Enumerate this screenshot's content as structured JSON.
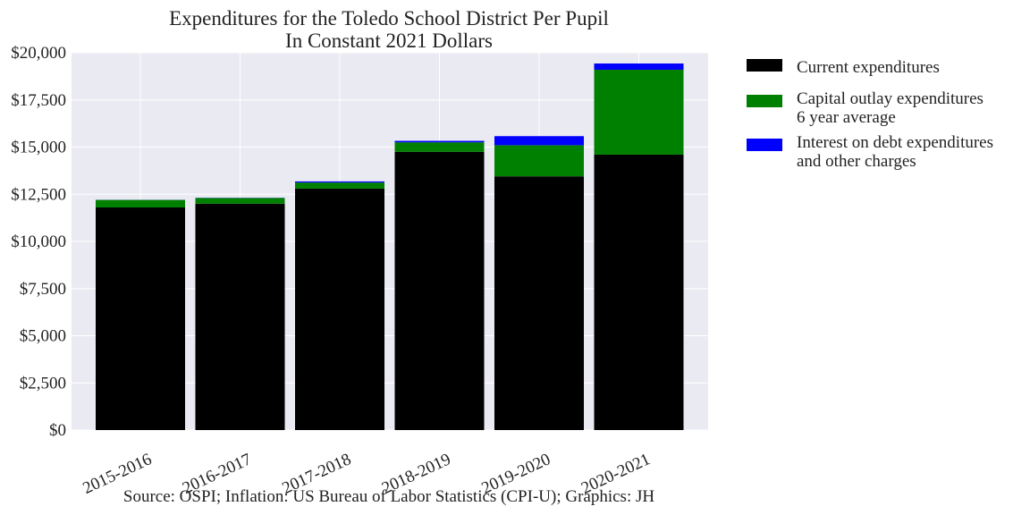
{
  "chart_data": {
    "type": "bar",
    "stacked": true,
    "title": "Expenditures for the Toledo School District Per Pupil",
    "subtitle": "In Constant 2021 Dollars",
    "xlabel": "",
    "ylabel": "",
    "categories": [
      "2015-2016",
      "2016-2017",
      "2017-2018",
      "2018-2019",
      "2019-2020",
      "2020-2021"
    ],
    "series": [
      {
        "name": "Current expenditures",
        "color": "#000000",
        "values": [
          11800,
          12000,
          12800,
          14750,
          13450,
          14600
        ]
      },
      {
        "name": "Capital outlay expenditures\n6 year average",
        "color": "#008000",
        "values": [
          400,
          300,
          320,
          500,
          1650,
          4500
        ]
      },
      {
        "name": "Interest on debt expenditures\nand other charges",
        "color": "#0000ff",
        "values": [
          5,
          10,
          60,
          80,
          480,
          330
        ]
      }
    ],
    "ylim": [
      0,
      20000
    ],
    "yticks": [
      0,
      2500,
      5000,
      7500,
      10000,
      12500,
      15000,
      17500,
      20000
    ],
    "ytick_labels": [
      "$0",
      "$2,500",
      "$5,000",
      "$7,500",
      "$10,000",
      "$12,500",
      "$15,000",
      "$17,500",
      "$20,000"
    ],
    "grid": true,
    "legend_position": "outside-right"
  },
  "source": "Source: OSPI; Inflation: US Bureau of Labor Statistics (CPI-U); Graphics: JH",
  "colors": {
    "plot_background": "#eaeaf2",
    "grid": "#ffffff"
  }
}
